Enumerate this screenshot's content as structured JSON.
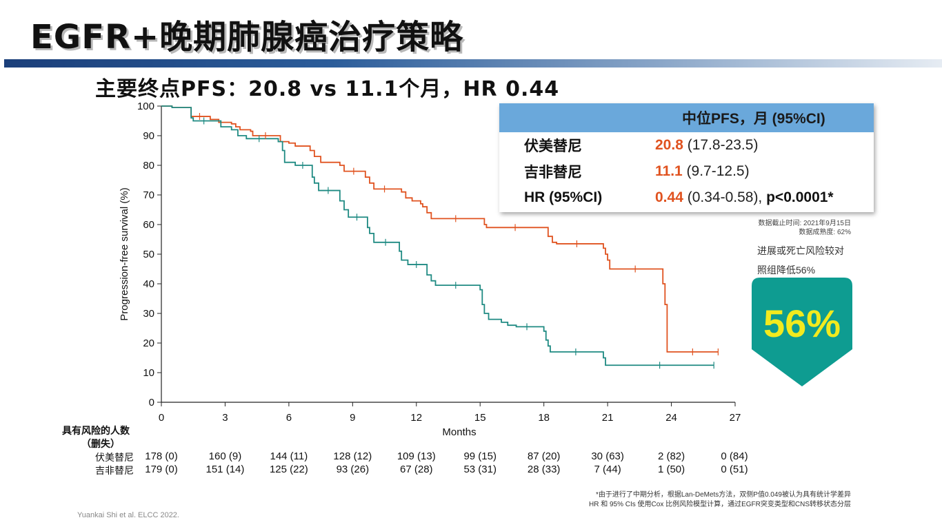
{
  "title": "EGFR+晚期肺腺癌治疗策略",
  "subtitle": "主要终点PFS：20.8 vs 11.1个月，HR 0.44",
  "chart_data": {
    "type": "line",
    "xlabel": "Months",
    "ylabel": "Progression-free survival (%)",
    "xlim": [
      0,
      27
    ],
    "ylim": [
      0,
      100
    ],
    "xticks": [
      0,
      3,
      6,
      9,
      12,
      15,
      18,
      21,
      24,
      27
    ],
    "yticks": [
      0,
      10,
      20,
      30,
      40,
      50,
      60,
      70,
      80,
      90,
      100
    ],
    "grid": false,
    "series": [
      {
        "name": "伏美替尼",
        "color": "#e0521f",
        "points": [
          [
            0,
            100
          ],
          [
            0.5,
            99.5
          ],
          [
            1.0,
            99.5
          ],
          [
            1.4,
            99
          ],
          [
            1.4,
            96.5
          ],
          [
            2.2,
            96.5
          ],
          [
            2.3,
            95.5
          ],
          [
            2.6,
            95.5
          ],
          [
            2.7,
            94.5
          ],
          [
            3.3,
            94
          ],
          [
            3.5,
            93
          ],
          [
            3.7,
            92
          ],
          [
            4.2,
            91.5
          ],
          [
            4.3,
            90
          ],
          [
            5.5,
            90
          ],
          [
            5.6,
            88
          ],
          [
            6.0,
            87.5
          ],
          [
            6.3,
            86.5
          ],
          [
            6.8,
            86.5
          ],
          [
            7.0,
            85
          ],
          [
            7.2,
            83
          ],
          [
            7.5,
            81
          ],
          [
            8.0,
            81
          ],
          [
            8.4,
            80
          ],
          [
            8.6,
            78
          ],
          [
            9.5,
            78
          ],
          [
            9.6,
            76
          ],
          [
            9.8,
            74
          ],
          [
            10.0,
            72
          ],
          [
            11.0,
            72
          ],
          [
            11.3,
            71
          ],
          [
            11.5,
            69
          ],
          [
            11.8,
            68
          ],
          [
            12.2,
            67
          ],
          [
            12.3,
            66
          ],
          [
            12.5,
            64
          ],
          [
            12.7,
            62
          ],
          [
            15.0,
            62
          ],
          [
            15.2,
            60
          ],
          [
            15.3,
            59
          ],
          [
            18.0,
            59
          ],
          [
            18.2,
            56
          ],
          [
            18.4,
            54
          ],
          [
            18.6,
            53.5
          ],
          [
            20.5,
            53.5
          ],
          [
            20.8,
            52
          ],
          [
            20.9,
            50
          ],
          [
            21.0,
            48
          ],
          [
            21.1,
            46
          ],
          [
            21.1,
            45
          ],
          [
            23.5,
            45
          ],
          [
            23.6,
            40
          ],
          [
            23.7,
            33
          ],
          [
            23.8,
            17
          ],
          [
            26.2,
            17
          ]
        ]
      },
      {
        "name": "吉非替尼",
        "color": "#1e8a82",
        "points": [
          [
            0,
            100
          ],
          [
            0.5,
            99.5
          ],
          [
            1.0,
            99.5
          ],
          [
            1.4,
            99
          ],
          [
            1.4,
            96
          ],
          [
            1.5,
            95
          ],
          [
            2.5,
            95
          ],
          [
            2.8,
            93
          ],
          [
            3.3,
            92
          ],
          [
            3.6,
            90
          ],
          [
            4.0,
            89
          ],
          [
            5.2,
            89
          ],
          [
            5.5,
            88
          ],
          [
            5.7,
            85
          ],
          [
            5.8,
            81
          ],
          [
            6.3,
            80
          ],
          [
            7.0,
            80
          ],
          [
            7.1,
            76
          ],
          [
            7.2,
            74
          ],
          [
            7.4,
            71.5
          ],
          [
            8.3,
            71.5
          ],
          [
            8.4,
            68
          ],
          [
            8.6,
            65
          ],
          [
            8.8,
            62.5
          ],
          [
            9.6,
            62.5
          ],
          [
            9.7,
            59
          ],
          [
            9.8,
            57
          ],
          [
            10.0,
            54
          ],
          [
            11.1,
            54
          ],
          [
            11.2,
            51
          ],
          [
            11.3,
            48
          ],
          [
            11.6,
            46.5
          ],
          [
            12.4,
            46.5
          ],
          [
            12.5,
            43
          ],
          [
            12.7,
            41
          ],
          [
            12.9,
            39.5
          ],
          [
            14.8,
            39.5
          ],
          [
            15.0,
            38
          ],
          [
            15.1,
            33
          ],
          [
            15.2,
            30
          ],
          [
            15.4,
            28
          ],
          [
            16.0,
            27
          ],
          [
            16.3,
            26
          ],
          [
            16.7,
            25.5
          ],
          [
            17.7,
            25.5
          ],
          [
            18.0,
            24
          ],
          [
            18.1,
            21
          ],
          [
            18.2,
            19
          ],
          [
            18.3,
            17
          ],
          [
            20.7,
            17
          ],
          [
            20.8,
            15
          ],
          [
            20.9,
            12.5
          ],
          [
            26.0,
            12.5
          ]
        ]
      }
    ],
    "risk_table": {
      "title": "具有风险的人数",
      "subtitle": "（删失）",
      "times": [
        0,
        3,
        6,
        9,
        12,
        15,
        18,
        21,
        24,
        27
      ],
      "rows": [
        {
          "label": "伏美替尼",
          "values": [
            "178 (0)",
            "160 (9)",
            "144 (11)",
            "128 (12)",
            "109 (13)",
            "99 (15)",
            "87 (20)",
            "30 (63)",
            "2 (82)",
            "0 (84)"
          ]
        },
        {
          "label": "吉非替尼",
          "values": [
            "179 (0)",
            "151 (14)",
            "125 (22)",
            "93 (26)",
            "67 (28)",
            "53 (31)",
            "28 (33)",
            "7 (44)",
            "1 (50)",
            "0 (51)"
          ]
        }
      ]
    }
  },
  "summary_table": {
    "header": "中位PFS，月 (95%CI)",
    "rows": [
      {
        "label": "伏美替尼",
        "value": "20.8",
        "ci": " (17.8-23.5)"
      },
      {
        "label": "吉非替尼",
        "value": "11.1",
        "ci": " (9.7-12.5)"
      },
      {
        "label": "HR (95%CI)",
        "value": "0.44",
        "ci": " (0.34-0.58), ",
        "p": "p<0.0001*"
      }
    ]
  },
  "cutoff_lines": [
    "数据截止时间: 2021年9月15日",
    "数据成熟度: 62%"
  ],
  "risk_reduction_lines": [
    "进展或死亡风险较对",
    "照组降低56%"
  ],
  "badge": {
    "text": "56%",
    "color": "#0e9c91"
  },
  "footnotes": [
    "*由于进行了中期分析，根据Lan-DeMets方法，双侧P值0.049被认为具有统计学差异",
    "HR 和 95% CIs 使用Cox 比例风险模型计算，通过EGFR突变类型和CNS转移状态分层"
  ],
  "citation": "Yuankai Shi et al. ELCC 2022."
}
